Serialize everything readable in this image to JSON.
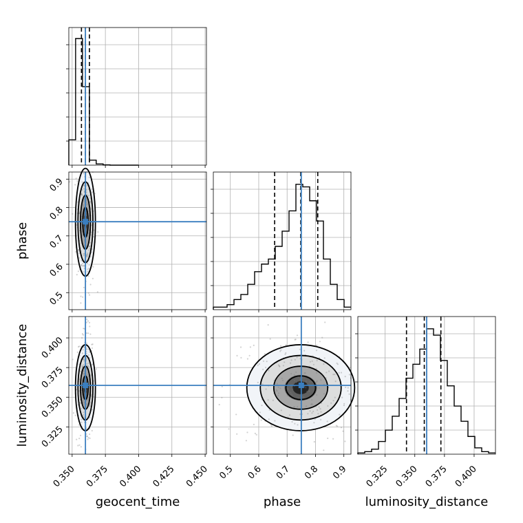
{
  "chart_data": {
    "type": "corner",
    "parameters": [
      "geocent_time",
      "phase",
      "luminosity_distance"
    ],
    "truths": {
      "geocent_time": 0.36,
      "phase": 0.75,
      "luminosity_distance": 0.36
    },
    "quantiles": {
      "geocent_time": [
        0.357,
        0.36,
        0.363
      ],
      "phase": [
        0.656,
        0.748,
        0.808
      ],
      "luminosity_distance": [
        0.343,
        0.358,
        0.372
      ]
    },
    "ranges": {
      "geocent_time": [
        0.3475,
        0.451
      ],
      "phase": [
        0.44,
        0.925
      ],
      "luminosity_distance": [
        0.302,
        0.418
      ]
    },
    "ticks": {
      "geocent_time": [
        "0.350",
        "0.375",
        "0.400",
        "0.425",
        "0.450"
      ],
      "phase": [
        "0.5",
        "0.6",
        "0.7",
        "0.8",
        "0.9"
      ],
      "luminosity_distance": [
        "0.325",
        "0.350",
        "0.375",
        "0.400"
      ]
    },
    "ytick_labels": {
      "phase": [
        "0.5",
        "0.6",
        "0.7",
        "0.8",
        "0.9"
      ],
      "luminosity_distance": [
        "0.325",
        "0.350",
        "0.375",
        "0.400"
      ]
    },
    "histograms": {
      "geocent_time": {
        "edges": [
          0.3475,
          0.3526,
          0.3578,
          0.363,
          0.3681,
          0.3733,
          0.3785,
          0.3836,
          0.3888,
          0.394,
          0.4
        ],
        "counts": [
          0.2,
          1.0,
          0.62,
          0.04,
          0.01,
          0.002,
          0.0,
          0.0,
          0.0,
          0.0
        ]
      },
      "phase": {
        "edges": [
          0.44,
          0.4643,
          0.4885,
          0.5128,
          0.537,
          0.5613,
          0.5855,
          0.6098,
          0.634,
          0.6583,
          0.6825,
          0.7068,
          0.731,
          0.7553,
          0.7795,
          0.8038,
          0.828,
          0.8523,
          0.8765,
          0.9008,
          0.925
        ],
        "counts": [
          0.02,
          0.02,
          0.04,
          0.08,
          0.12,
          0.2,
          0.3,
          0.36,
          0.4,
          0.5,
          0.62,
          0.78,
          0.99,
          0.97,
          0.86,
          0.7,
          0.4,
          0.2,
          0.08,
          0.02
        ]
      },
      "luminosity_distance": {
        "edges": [
          0.302,
          0.3078,
          0.3136,
          0.3194,
          0.3252,
          0.331,
          0.3368,
          0.3426,
          0.3484,
          0.3542,
          0.36,
          0.3658,
          0.3716,
          0.3774,
          0.3832,
          0.389,
          0.3948,
          0.4006,
          0.4064,
          0.4122,
          0.418
        ],
        "counts": [
          0.01,
          0.02,
          0.04,
          0.1,
          0.19,
          0.3,
          0.44,
          0.6,
          0.71,
          0.83,
          0.99,
          0.94,
          0.74,
          0.54,
          0.38,
          0.26,
          0.14,
          0.05,
          0.02,
          0.01
        ]
      }
    },
    "grid": true
  }
}
